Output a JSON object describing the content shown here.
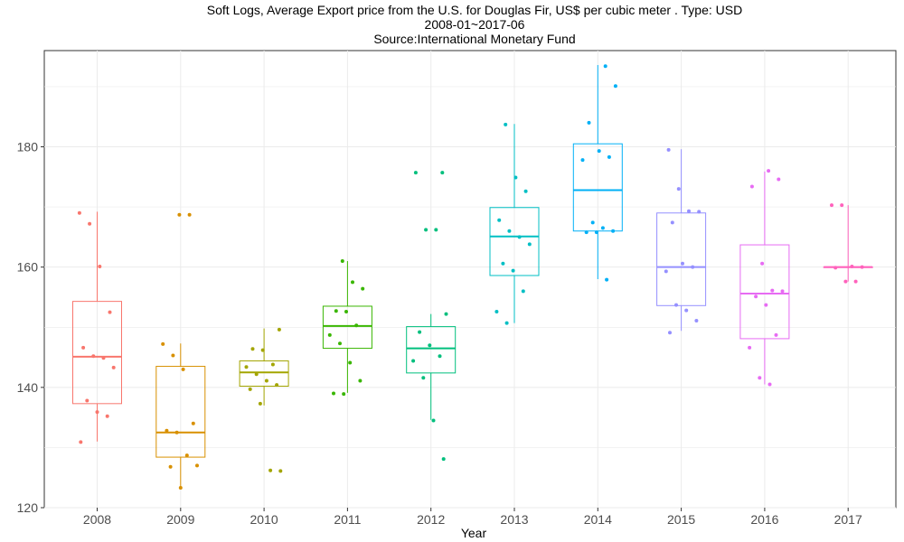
{
  "chart_data": {
    "type": "box",
    "title": "Soft Logs, Average Export price from the U.S. for Douglas Fir, US$ per cubic meter . Type: USD",
    "subtitle": "2008-01~2017-06",
    "source": "Source:International Monetary Fund",
    "xlabel": "Year",
    "ylabel": "",
    "ylim": [
      120,
      196
    ],
    "yticks": [
      120,
      140,
      160,
      180
    ],
    "grid": true,
    "legend": "none",
    "categories": [
      "2008",
      "2009",
      "2010",
      "2011",
      "2012",
      "2013",
      "2014",
      "2015",
      "2016",
      "2017"
    ],
    "colors": [
      "#F8766D",
      "#D89000",
      "#A3A500",
      "#39B600",
      "#00BF7D",
      "#00BFC4",
      "#00B0F6",
      "#9590FF",
      "#E76BF3",
      "#FF62BC"
    ],
    "boxes": [
      {
        "year": "2008",
        "min": 131.0,
        "q1": 137.3,
        "median": 145.1,
        "q3": 154.3,
        "max": 169.2,
        "points": [
          169.0,
          167.2,
          160.1,
          152.5,
          146.6,
          145.2,
          144.9,
          143.3,
          137.8,
          135.9,
          135.2,
          130.9
        ]
      },
      {
        "year": "2009",
        "min": 123.3,
        "q1": 128.4,
        "median": 132.5,
        "q3": 143.5,
        "max": 147.3,
        "points": [
          168.7,
          168.7,
          147.2,
          145.3,
          143.0,
          134.0,
          132.8,
          132.5,
          128.7,
          127.0,
          126.8,
          123.3
        ]
      },
      {
        "year": "2010",
        "min": 137.0,
        "q1": 140.2,
        "median": 142.5,
        "q3": 144.4,
        "max": 149.8,
        "points": [
          149.6,
          146.4,
          146.2,
          143.8,
          143.4,
          142.2,
          141.1,
          140.4,
          139.7,
          137.3,
          126.2,
          126.1
        ]
      },
      {
        "year": "2011",
        "min": 139.1,
        "q1": 146.5,
        "median": 150.2,
        "q3": 153.5,
        "max": 161.0,
        "points": [
          161.0,
          157.5,
          156.4,
          152.7,
          152.6,
          150.3,
          148.7,
          147.3,
          144.1,
          141.1,
          139.0,
          138.9
        ]
      },
      {
        "year": "2012",
        "min": 134.6,
        "q1": 142.4,
        "median": 146.5,
        "q3": 150.1,
        "max": 152.2,
        "points": [
          175.7,
          175.7,
          166.2,
          166.2,
          152.2,
          149.2,
          147.0,
          145.2,
          144.4,
          141.6,
          134.5,
          128.1
        ]
      },
      {
        "year": "2013",
        "min": 150.7,
        "q1": 158.6,
        "median": 165.1,
        "q3": 169.9,
        "max": 183.8,
        "points": [
          183.7,
          174.9,
          172.6,
          167.8,
          166.0,
          165.0,
          163.8,
          160.6,
          159.4,
          156.0,
          152.6,
          150.7
        ]
      },
      {
        "year": "2014",
        "min": 158.0,
        "q1": 166.0,
        "median": 172.8,
        "q3": 180.5,
        "max": 193.6,
        "points": [
          193.4,
          190.1,
          184.0,
          179.3,
          178.3,
          177.8,
          167.4,
          166.5,
          166.0,
          165.8,
          165.8,
          157.9
        ]
      },
      {
        "year": "2015",
        "min": 149.4,
        "q1": 153.6,
        "median": 160.0,
        "q3": 169.0,
        "max": 179.6,
        "points": [
          179.5,
          173.0,
          169.3,
          169.2,
          167.4,
          160.6,
          160.0,
          159.3,
          153.7,
          152.8,
          151.1,
          149.1
        ]
      },
      {
        "year": "2016",
        "min": 140.5,
        "q1": 148.1,
        "median": 155.6,
        "q3": 163.7,
        "max": 175.9,
        "points": [
          176.0,
          174.6,
          173.4,
          160.6,
          156.1,
          156.0,
          155.1,
          153.7,
          148.7,
          146.6,
          141.6,
          140.5
        ]
      },
      {
        "year": "2017",
        "min": 157.6,
        "q1": 160.0,
        "median": 160.0,
        "q3": 160.0,
        "max": 170.3,
        "points": [
          170.3,
          170.3,
          160.1,
          160.0,
          159.9,
          157.6,
          157.6
        ]
      }
    ]
  }
}
